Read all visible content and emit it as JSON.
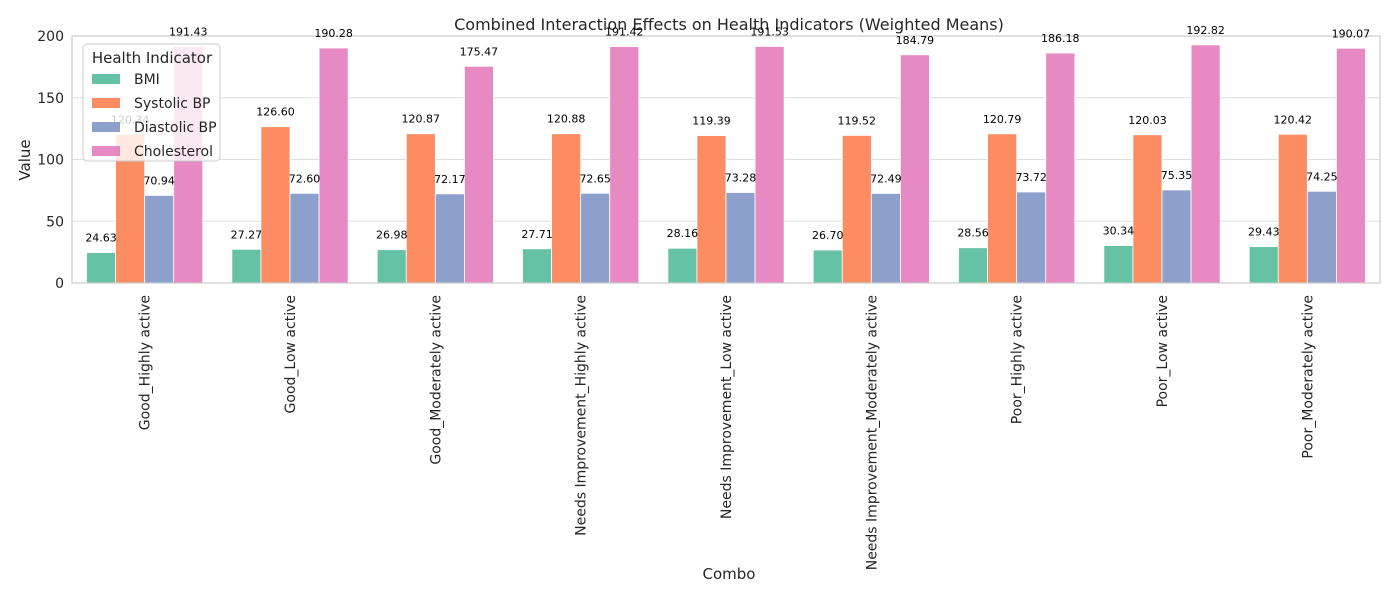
{
  "chart_data": {
    "type": "bar",
    "title": "Combined Interaction Effects on Health Indicators (Weighted Means)",
    "xlabel": "Combo",
    "ylabel": "Value",
    "ylim": [
      0,
      200
    ],
    "yticks": [
      0,
      50,
      100,
      150,
      200
    ],
    "grid": true,
    "legend": {
      "title": "Health Indicator",
      "placement": "top-left"
    },
    "categories": [
      "Good_Highly active",
      "Good_Low active",
      "Good_Moderately active",
      "Needs Improvement_Highly active",
      "Needs Improvement_Low active",
      "Needs Improvement_Moderately active",
      "Poor_Highly active",
      "Poor_Low active",
      "Poor_Moderately active"
    ],
    "series": [
      {
        "name": "BMI",
        "color": "#66c2a5",
        "values": [
          24.63,
          27.27,
          26.98,
          27.71,
          28.16,
          26.7,
          28.56,
          30.34,
          29.43
        ]
      },
      {
        "name": "Systolic BP",
        "color": "#fc8d62",
        "values": [
          120.34,
          126.6,
          120.87,
          120.88,
          119.39,
          119.52,
          120.79,
          120.03,
          120.42
        ]
      },
      {
        "name": "Diastolic BP",
        "color": "#8da0cb",
        "values": [
          70.94,
          72.6,
          72.17,
          72.65,
          73.28,
          72.49,
          73.72,
          75.35,
          74.25
        ]
      },
      {
        "name": "Cholesterol",
        "color": "#e78ac3",
        "values": [
          191.43,
          190.28,
          175.47,
          191.42,
          191.53,
          184.79,
          186.18,
          192.82,
          190.07
        ]
      }
    ]
  }
}
